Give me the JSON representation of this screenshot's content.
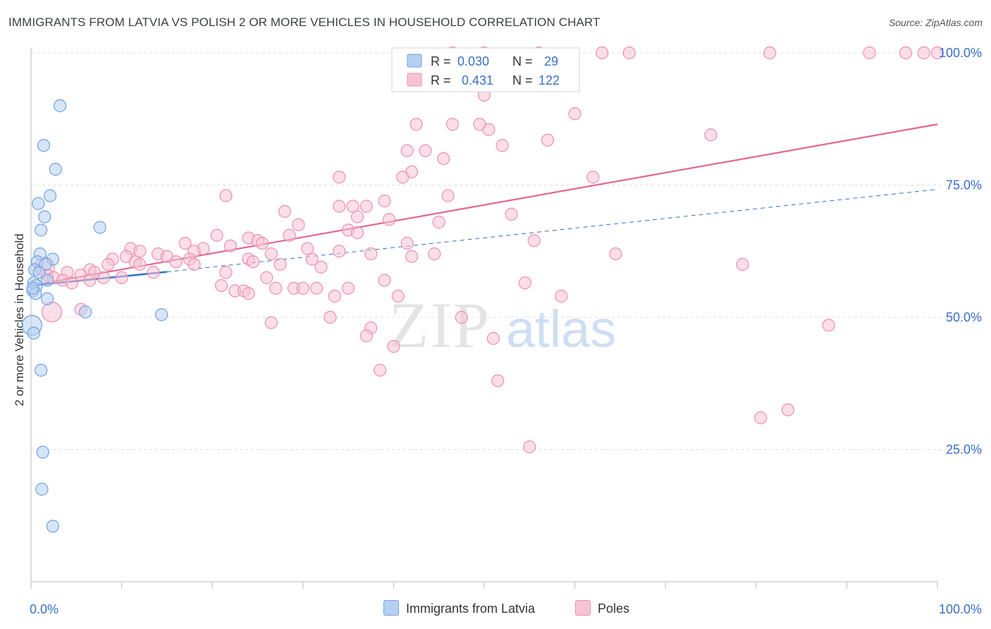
{
  "title": "IMMIGRANTS FROM LATVIA VS POLISH 2 OR MORE VEHICLES IN HOUSEHOLD CORRELATION CHART",
  "source": "Source: ZipAtlas.com",
  "watermark": {
    "zip": "ZIP",
    "atlas": "atlas"
  },
  "colors": {
    "blue": "#6fa1e0",
    "blue_fill": "#b6cff2",
    "blue_line": "#2f6fcf",
    "pink": "#ec8fae",
    "pink_fill": "#f7c3d4",
    "pink_line": "#e3668f",
    "tick_label": "#3a6fc8",
    "grid": "#dddddd"
  },
  "legend_top": {
    "rows": [
      {
        "r_label": "R =",
        "r_value": "0.030",
        "n_label": "N =",
        "n_value": "29"
      },
      {
        "r_label": "R =",
        "r_value": "0.431",
        "n_label": "N =",
        "n_value": "122"
      }
    ]
  },
  "legend_bottom": {
    "items": [
      {
        "label": "Immigrants from Latvia"
      },
      {
        "label": "Poles"
      }
    ]
  },
  "chart_data": {
    "type": "scatter",
    "xlabel": "",
    "ylabel": "2 or more Vehicles in Household",
    "xlim": [
      0,
      100
    ],
    "ylim": [
      0,
      102
    ],
    "x_tick_labels": [
      {
        "v": 0,
        "label": "0.0%"
      },
      {
        "v": 100,
        "label": "100.0%"
      }
    ],
    "y_tick_labels": [
      {
        "v": 25,
        "label": "25.0%"
      },
      {
        "v": 50,
        "label": "50.0%"
      },
      {
        "v": 75,
        "label": "75.0%"
      },
      {
        "v": 100,
        "label": "100.0%"
      }
    ],
    "gridlines_y": [
      25,
      50,
      75,
      100
    ],
    "x_ticks": [
      0,
      10,
      20,
      30,
      40,
      50,
      60,
      70,
      80,
      90,
      100
    ],
    "series": [
      {
        "name": "Immigrants from Latvia",
        "color": "blue",
        "points": [
          {
            "x": 3.2,
            "y": 90.0
          },
          {
            "x": 1.4,
            "y": 82.5
          },
          {
            "x": 2.7,
            "y": 78.0
          },
          {
            "x": 0.8,
            "y": 71.5
          },
          {
            "x": 2.1,
            "y": 73.0
          },
          {
            "x": 1.5,
            "y": 69.0
          },
          {
            "x": 1.1,
            "y": 66.5
          },
          {
            "x": 7.6,
            "y": 67.0
          },
          {
            "x": 1.0,
            "y": 62.0
          },
          {
            "x": 2.4,
            "y": 61.0
          },
          {
            "x": 0.7,
            "y": 60.5
          },
          {
            "x": 1.6,
            "y": 60.0
          },
          {
            "x": 0.4,
            "y": 59.0
          },
          {
            "x": 0.9,
            "y": 58.5
          },
          {
            "x": 1.8,
            "y": 57.0
          },
          {
            "x": 0.3,
            "y": 56.5
          },
          {
            "x": 0.6,
            "y": 56.0
          },
          {
            "x": 0.2,
            "y": 55.0
          },
          {
            "x": 0.5,
            "y": 54.5
          },
          {
            "x": 1.8,
            "y": 53.5
          },
          {
            "x": 6.0,
            "y": 51.0
          },
          {
            "x": 14.4,
            "y": 50.5
          },
          {
            "x": 0.1,
            "y": 48.5,
            "big": true
          },
          {
            "x": 0.3,
            "y": 47.0
          },
          {
            "x": 1.1,
            "y": 40.0
          },
          {
            "x": 1.3,
            "y": 24.5
          },
          {
            "x": 1.2,
            "y": 17.5
          },
          {
            "x": 2.4,
            "y": 10.5
          },
          {
            "x": 0.2,
            "y": 55.5
          }
        ],
        "trend": {
          "x0": 0,
          "y0": 56.0,
          "x1": 15,
          "y1": 58.6,
          "dash_x1": 100,
          "dash_y1": 74.2
        }
      },
      {
        "name": "Poles",
        "color": "pink",
        "points": [
          {
            "x": 46.5,
            "y": 100
          },
          {
            "x": 50.0,
            "y": 100
          },
          {
            "x": 56.0,
            "y": 100
          },
          {
            "x": 63.0,
            "y": 100
          },
          {
            "x": 66.0,
            "y": 100
          },
          {
            "x": 81.5,
            "y": 100
          },
          {
            "x": 92.5,
            "y": 100
          },
          {
            "x": 96.5,
            "y": 100
          },
          {
            "x": 98.5,
            "y": 100
          },
          {
            "x": 100,
            "y": 100
          },
          {
            "x": 46.0,
            "y": 95.0
          },
          {
            "x": 50.0,
            "y": 99.0
          },
          {
            "x": 50.0,
            "y": 92.0
          },
          {
            "x": 60.0,
            "y": 88.5
          },
          {
            "x": 42.5,
            "y": 86.5
          },
          {
            "x": 46.5,
            "y": 86.5
          },
          {
            "x": 49.5,
            "y": 86.5
          },
          {
            "x": 50.5,
            "y": 85.5
          },
          {
            "x": 75.0,
            "y": 84.5
          },
          {
            "x": 57.0,
            "y": 83.5
          },
          {
            "x": 52.0,
            "y": 82.5
          },
          {
            "x": 41.5,
            "y": 81.5
          },
          {
            "x": 43.5,
            "y": 81.5
          },
          {
            "x": 45.5,
            "y": 80.0
          },
          {
            "x": 42.0,
            "y": 77.5
          },
          {
            "x": 41.0,
            "y": 76.5
          },
          {
            "x": 34.0,
            "y": 76.5
          },
          {
            "x": 62.0,
            "y": 76.5
          },
          {
            "x": 21.5,
            "y": 73.0
          },
          {
            "x": 46.0,
            "y": 73.0
          },
          {
            "x": 39.0,
            "y": 72.0
          },
          {
            "x": 34.0,
            "y": 71.0
          },
          {
            "x": 35.5,
            "y": 71.0
          },
          {
            "x": 37.0,
            "y": 71.0
          },
          {
            "x": 28.0,
            "y": 70.0
          },
          {
            "x": 53.0,
            "y": 69.5
          },
          {
            "x": 39.5,
            "y": 68.5
          },
          {
            "x": 45.0,
            "y": 68.0
          },
          {
            "x": 29.5,
            "y": 67.5
          },
          {
            "x": 35.0,
            "y": 66.5
          },
          {
            "x": 36.0,
            "y": 66.0
          },
          {
            "x": 28.5,
            "y": 65.5
          },
          {
            "x": 20.5,
            "y": 65.5
          },
          {
            "x": 24.0,
            "y": 65.0
          },
          {
            "x": 25.0,
            "y": 64.5
          },
          {
            "x": 17.0,
            "y": 64.0
          },
          {
            "x": 25.5,
            "y": 64.0
          },
          {
            "x": 55.5,
            "y": 64.5
          },
          {
            "x": 22.0,
            "y": 63.5
          },
          {
            "x": 11.0,
            "y": 63.0
          },
          {
            "x": 19.0,
            "y": 63.0
          },
          {
            "x": 30.5,
            "y": 63.0
          },
          {
            "x": 34.0,
            "y": 62.5
          },
          {
            "x": 12.0,
            "y": 62.5
          },
          {
            "x": 18.0,
            "y": 62.5
          },
          {
            "x": 14.0,
            "y": 62.0
          },
          {
            "x": 26.5,
            "y": 62.0
          },
          {
            "x": 37.5,
            "y": 62.0
          },
          {
            "x": 10.5,
            "y": 61.5
          },
          {
            "x": 15.0,
            "y": 61.5
          },
          {
            "x": 42.0,
            "y": 61.5
          },
          {
            "x": 17.5,
            "y": 61.0
          },
          {
            "x": 9.0,
            "y": 61.0
          },
          {
            "x": 24.0,
            "y": 61.0
          },
          {
            "x": 31.0,
            "y": 61.0
          },
          {
            "x": 11.5,
            "y": 60.5
          },
          {
            "x": 16.0,
            "y": 60.5
          },
          {
            "x": 24.5,
            "y": 60.5
          },
          {
            "x": 27.5,
            "y": 60.0
          },
          {
            "x": 44.5,
            "y": 62.0
          },
          {
            "x": 64.5,
            "y": 62.0
          },
          {
            "x": 78.5,
            "y": 60.0
          },
          {
            "x": 8.5,
            "y": 60.0
          },
          {
            "x": 12.0,
            "y": 60.0
          },
          {
            "x": 18.0,
            "y": 60.0
          },
          {
            "x": 32.0,
            "y": 59.5
          },
          {
            "x": 6.5,
            "y": 59.0
          },
          {
            "x": 1.5,
            "y": 59.5,
            "big": true
          },
          {
            "x": 4.0,
            "y": 58.5
          },
          {
            "x": 7.0,
            "y": 58.5
          },
          {
            "x": 13.5,
            "y": 58.5
          },
          {
            "x": 21.5,
            "y": 58.5
          },
          {
            "x": 5.5,
            "y": 58.0
          },
          {
            "x": 1.8,
            "y": 58.0
          },
          {
            "x": 2.5,
            "y": 57.5
          },
          {
            "x": 8.0,
            "y": 57.5
          },
          {
            "x": 10.0,
            "y": 57.5
          },
          {
            "x": 26.0,
            "y": 57.5
          },
          {
            "x": 3.5,
            "y": 57.0
          },
          {
            "x": 6.5,
            "y": 57.0
          },
          {
            "x": 4.5,
            "y": 56.5
          },
          {
            "x": 54.5,
            "y": 56.5
          },
          {
            "x": 39.0,
            "y": 57.0
          },
          {
            "x": 21.0,
            "y": 56.0
          },
          {
            "x": 29.0,
            "y": 55.5
          },
          {
            "x": 30.0,
            "y": 55.5
          },
          {
            "x": 22.5,
            "y": 55.0
          },
          {
            "x": 23.5,
            "y": 55.0
          },
          {
            "x": 35.0,
            "y": 55.5
          },
          {
            "x": 27.0,
            "y": 55.5
          },
          {
            "x": 31.5,
            "y": 55.5
          },
          {
            "x": 24.0,
            "y": 54.5
          },
          {
            "x": 40.5,
            "y": 54.0
          },
          {
            "x": 33.5,
            "y": 54.0
          },
          {
            "x": 5.5,
            "y": 51.5
          },
          {
            "x": 2.3,
            "y": 51.0,
            "big": true
          },
          {
            "x": 33.0,
            "y": 50.0
          },
          {
            "x": 47.5,
            "y": 50.0
          },
          {
            "x": 26.5,
            "y": 49.0
          },
          {
            "x": 88.0,
            "y": 48.5
          },
          {
            "x": 37.5,
            "y": 48.0
          },
          {
            "x": 37.0,
            "y": 46.5
          },
          {
            "x": 51.0,
            "y": 46.0
          },
          {
            "x": 40.0,
            "y": 44.5
          },
          {
            "x": 38.5,
            "y": 40.0
          },
          {
            "x": 80.5,
            "y": 31.0
          },
          {
            "x": 83.5,
            "y": 32.5
          },
          {
            "x": 55.0,
            "y": 25.5
          },
          {
            "x": 51.5,
            "y": 38.0
          },
          {
            "x": 58.5,
            "y": 54.0
          },
          {
            "x": 36.0,
            "y": 69.0
          },
          {
            "x": 41.5,
            "y": 64.0
          }
        ],
        "trend": {
          "x0": 0,
          "y0": 56.0,
          "x1": 100,
          "y1": 86.5
        }
      }
    ]
  }
}
